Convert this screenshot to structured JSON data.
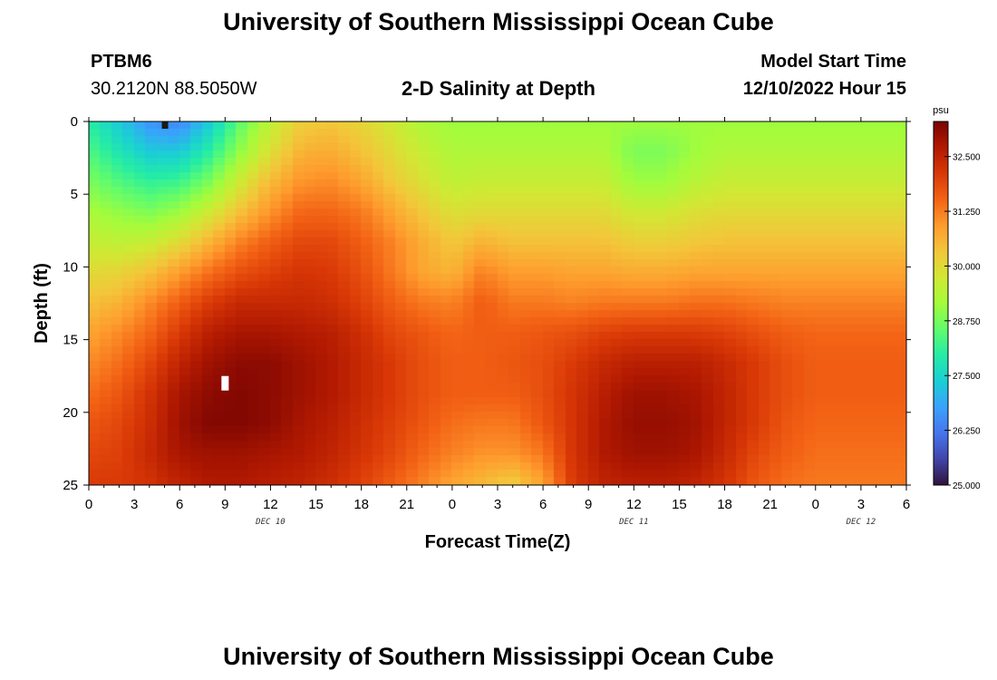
{
  "titles": {
    "main": "University of Southern Mississippi Ocean Cube",
    "footer": "University of Southern Mississippi Ocean Cube"
  },
  "station": {
    "id": "PTBM6",
    "coords": "30.2120N  88.5050W"
  },
  "plot_title": "2-D Salinity at Depth",
  "model": {
    "label": "Model Start Time",
    "value": "12/10/2022 Hour 15"
  },
  "colors": {
    "colormap": [
      "#30123b",
      "#4145ab",
      "#4675ed",
      "#39a2fc",
      "#1bcfd4",
      "#24eca6",
      "#61fc6c",
      "#a4fc3b",
      "#d1e834",
      "#f3c63a",
      "#fe9b2d",
      "#f36315",
      "#d93806",
      "#b11901",
      "#7a0402"
    ],
    "marker_dark": "#1a1a1a",
    "marker_light": "#ffffff"
  },
  "chart_data": {
    "type": "heatmap",
    "title": "2-D Salinity at Depth",
    "xlabel": "Forecast Time(Z)",
    "ylabel": "Depth (ft)",
    "x_range_hours": [
      0,
      54
    ],
    "x_ticks": [
      "0",
      "3",
      "6",
      "9",
      "12",
      "15",
      "18",
      "21",
      "0",
      "3",
      "6",
      "9",
      "12",
      "15",
      "18",
      "21",
      "0",
      "3",
      "6"
    ],
    "day_labels": [
      {
        "hour": 12,
        "label": "DEC 10"
      },
      {
        "hour": 36,
        "label": "DEC 11"
      },
      {
        "hour": 51,
        "label": "DEC 12"
      }
    ],
    "y_range_ft": [
      0,
      25
    ],
    "y_ticks": [
      "0",
      "5",
      "10",
      "15",
      "20",
      "25"
    ],
    "colorbar": {
      "unit": "psu",
      "range": [
        25.0,
        33.3
      ],
      "tick_values": [
        25.0,
        26.25,
        27.5,
        28.75,
        30.0,
        31.25,
        32.5
      ],
      "tick_labels": [
        "25.000",
        "26.250",
        "27.500",
        "28.750",
        "30.000",
        "31.250",
        "32.500"
      ]
    },
    "markers": [
      {
        "hour": 5,
        "depth_ft": 0.3,
        "style": "dark"
      },
      {
        "hour": 9,
        "depth_ft": 18.0,
        "style": "light"
      }
    ],
    "salinity_psu": [
      [
        28.0,
        27.3,
        26.6,
        26.4,
        27.3,
        28.5,
        29.5,
        30.2,
        30.3,
        30.1,
        29.7,
        29.3,
        29.1,
        29.1,
        29.1,
        29.1,
        29.1,
        29.1,
        29.1,
        29.1,
        29.1,
        29.1,
        29.1,
        29.1,
        29.1,
        29.1,
        29.1,
        29.1
      ],
      [
        28.4,
        27.8,
        27.3,
        27.3,
        28.0,
        29.0,
        29.9,
        30.6,
        30.7,
        30.4,
        30.0,
        29.6,
        29.3,
        29.3,
        29.3,
        29.3,
        29.3,
        29.3,
        28.8,
        28.8,
        29.1,
        29.3,
        29.3,
        29.3,
        29.3,
        29.3,
        29.3,
        29.3
      ],
      [
        28.8,
        28.4,
        28.1,
        28.2,
        28.8,
        29.7,
        30.5,
        31.0,
        31.1,
        30.8,
        30.3,
        29.9,
        29.5,
        29.6,
        29.6,
        29.6,
        29.6,
        29.6,
        29.1,
        29.1,
        29.4,
        29.6,
        29.6,
        29.6,
        29.6,
        29.6,
        29.6,
        29.6
      ],
      [
        29.2,
        29.0,
        28.8,
        29.1,
        29.7,
        30.4,
        31.0,
        31.5,
        31.5,
        31.3,
        30.8,
        30.3,
        29.9,
        30.0,
        30.0,
        30.0,
        30.0,
        30.0,
        29.7,
        29.7,
        29.9,
        30.0,
        30.0,
        30.0,
        30.0,
        30.0,
        30.0,
        30.0
      ],
      [
        29.6,
        29.5,
        29.6,
        30.0,
        30.6,
        31.2,
        31.6,
        31.9,
        31.9,
        31.6,
        31.2,
        30.7,
        30.3,
        30.6,
        30.4,
        30.4,
        30.4,
        30.4,
        30.2,
        30.2,
        30.3,
        30.4,
        30.4,
        30.4,
        30.4,
        30.4,
        30.4,
        30.4
      ],
      [
        30.0,
        30.1,
        30.4,
        30.9,
        31.4,
        31.8,
        32.0,
        32.2,
        32.1,
        31.8,
        31.3,
        30.8,
        30.6,
        31.2,
        30.9,
        30.9,
        30.8,
        30.8,
        30.7,
        30.7,
        30.8,
        30.8,
        30.8,
        30.8,
        30.8,
        30.8,
        30.8,
        30.8
      ],
      [
        30.4,
        30.6,
        31.1,
        31.6,
        32.1,
        32.4,
        32.4,
        32.4,
        32.3,
        32.0,
        31.6,
        31.3,
        31.2,
        31.6,
        31.3,
        31.3,
        31.2,
        31.3,
        31.3,
        31.3,
        31.4,
        31.4,
        31.3,
        31.2,
        31.2,
        31.2,
        31.2,
        31.2
      ],
      [
        30.8,
        31.1,
        31.5,
        32.1,
        32.6,
        32.8,
        32.8,
        32.7,
        32.6,
        32.3,
        31.9,
        31.7,
        31.5,
        31.6,
        31.6,
        31.7,
        31.8,
        32.0,
        32.1,
        32.1,
        32.1,
        32.0,
        31.8,
        31.6,
        31.5,
        31.5,
        31.5,
        31.5
      ],
      [
        31.1,
        31.4,
        31.9,
        32.5,
        32.9,
        33.1,
        33.1,
        32.9,
        32.7,
        32.4,
        32.1,
        31.8,
        31.6,
        31.6,
        31.7,
        31.8,
        32.1,
        32.4,
        32.6,
        32.6,
        32.6,
        32.4,
        32.1,
        31.8,
        31.6,
        31.6,
        31.6,
        31.6
      ],
      [
        31.4,
        31.7,
        32.2,
        32.8,
        33.1,
        33.2,
        33.1,
        32.9,
        32.7,
        32.4,
        32.1,
        31.8,
        31.6,
        31.6,
        31.6,
        31.8,
        32.2,
        32.6,
        32.9,
        32.9,
        32.8,
        32.5,
        32.1,
        31.8,
        31.6,
        31.6,
        31.6,
        31.6
      ],
      [
        31.7,
        31.9,
        32.3,
        32.9,
        33.2,
        33.2,
        33.1,
        32.8,
        32.6,
        32.3,
        32.0,
        31.7,
        31.4,
        31.3,
        31.3,
        31.7,
        32.2,
        32.7,
        33.0,
        33.0,
        32.9,
        32.5,
        32.1,
        31.7,
        31.5,
        31.5,
        31.5,
        31.5
      ],
      [
        31.9,
        32.0,
        32.4,
        32.8,
        32.9,
        32.9,
        32.8,
        32.7,
        32.5,
        32.2,
        31.9,
        31.5,
        31.2,
        31.0,
        31.0,
        31.3,
        32.2,
        32.7,
        32.9,
        32.9,
        32.8,
        32.4,
        31.9,
        31.6,
        31.4,
        31.4,
        31.4,
        31.4
      ],
      [
        32.1,
        32.1,
        32.2,
        32.5,
        32.7,
        32.7,
        32.6,
        32.5,
        32.3,
        32.0,
        31.6,
        31.2,
        30.8,
        30.5,
        30.2,
        30.8,
        32.1,
        32.5,
        32.6,
        32.6,
        32.5,
        32.2,
        31.7,
        31.4,
        31.3,
        31.3,
        31.3,
        31.3
      ]
    ]
  }
}
